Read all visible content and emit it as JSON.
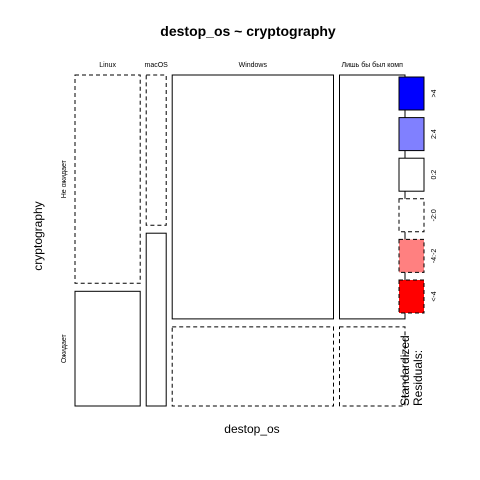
{
  "chart_data": {
    "type": "mosaic",
    "title": "destop_os ~ cryptography",
    "xlabel": "destop_os",
    "ylabel": "cryptography",
    "columns": [
      "Linux",
      "macOS",
      "Windows",
      "Лишь бы был комп"
    ],
    "rows": [
      "Не ожидает",
      "Ожидает"
    ],
    "column_proportions": [
      0.209,
      0.064,
      0.517,
      0.21
    ],
    "row_proportions_within_column": [
      [
        0.645,
        0.355
      ],
      [
        0.465,
        0.535
      ],
      [
        0.755,
        0.245
      ],
      [
        0.755,
        0.245
      ]
    ],
    "residual_class": [
      [
        "-2:0",
        "0:2"
      ],
      [
        "-2:0",
        "0:2"
      ],
      [
        "0:2",
        "-2:0"
      ],
      [
        "0:2",
        "-2:0"
      ]
    ],
    "legend": {
      "title_line1": "Standardized",
      "title_line2": "Residuals:",
      "bins": [
        {
          "label": ">4",
          "key": ">4",
          "fill": "#0000ff",
          "dashed": false
        },
        {
          "label": "2:4",
          "key": "2:4",
          "fill": "#8080ff",
          "dashed": false
        },
        {
          "label": "0:2",
          "key": "0:2",
          "fill": "#ffffff",
          "dashed": false
        },
        {
          "label": "-2:0",
          "key": "-2:0",
          "fill": "#ffffff",
          "dashed": true
        },
        {
          "label": "-4:-2",
          "key": "-4:-2",
          "fill": "#ff8080",
          "dashed": true
        },
        {
          "label": "<-4",
          "key": "<-4",
          "fill": "#ff0000",
          "dashed": true
        }
      ]
    }
  }
}
